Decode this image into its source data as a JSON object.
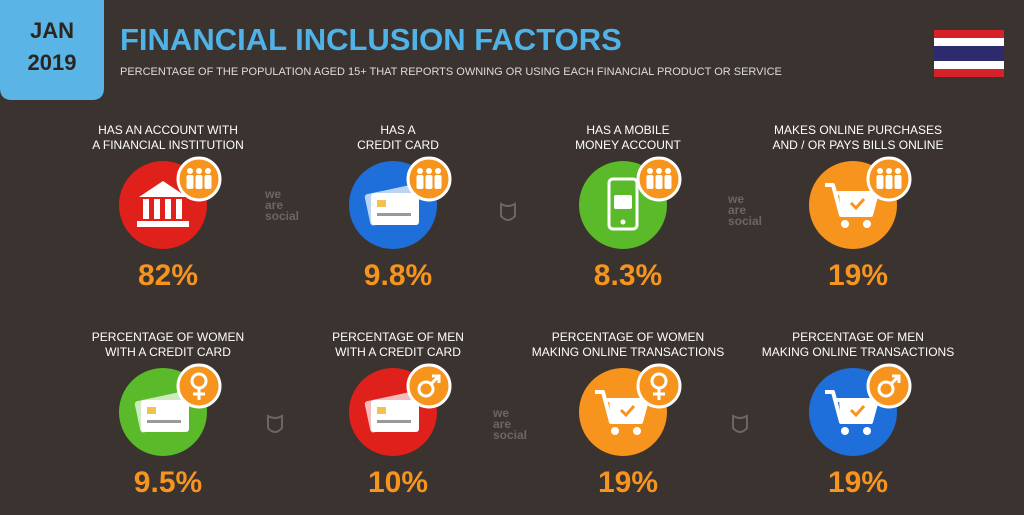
{
  "header": {
    "date": [
      "JAN",
      "2019"
    ],
    "title": "FINANCIAL INCLUSION FACTORS",
    "subtitle": "PERCENTAGE OF THE POPULATION AGED 15+ THAT REPORTS OWNING OR USING EACH FINANCIAL PRODUCT OR SERVICE"
  },
  "tiles": [
    {
      "label": [
        "HAS AN ACCOUNT WITH",
        "A FINANCIAL INSTITUTION"
      ],
      "value": "82%"
    },
    {
      "label": [
        "HAS A",
        "CREDIT CARD"
      ],
      "value": "9.8%"
    },
    {
      "label": [
        "HAS A MOBILE",
        "MONEY ACCOUNT"
      ],
      "value": "8.3%"
    },
    {
      "label": [
        "MAKES ONLINE PURCHASES",
        "AND / OR PAYS BILLS ONLINE"
      ],
      "value": "19%"
    },
    {
      "label": [
        "PERCENTAGE OF WOMEN",
        "WITH A CREDIT CARD"
      ],
      "value": "9.5%"
    },
    {
      "label": [
        "PERCENTAGE OF MEN",
        "WITH A CREDIT CARD"
      ],
      "value": "10%"
    },
    {
      "label": [
        "PERCENTAGE OF WOMEN",
        "MAKING ONLINE TRANSACTIONS"
      ],
      "value": "19%"
    },
    {
      "label": [
        "PERCENTAGE OF MEN",
        "MAKING ONLINE TRANSACTIONS"
      ],
      "value": "19%"
    }
  ],
  "watermark": [
    "we",
    "are",
    "social"
  ]
}
